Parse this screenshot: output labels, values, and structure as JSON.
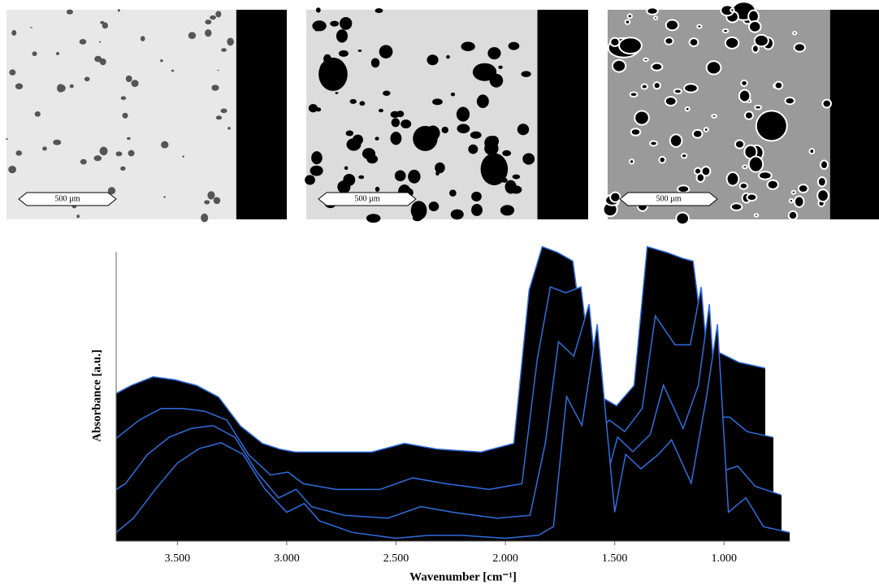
{
  "images": [
    {
      "scale_bar": "500 µm"
    },
    {
      "scale_bar": "500 µm"
    },
    {
      "scale_bar": "500 µm"
    }
  ],
  "chart_data": {
    "type": "waterfall",
    "xlabel": "Wavenumber [cm⁻¹]",
    "ylabel": "Absorbance [a.u.]",
    "xlim": [
      3780,
      700
    ],
    "ylim": [
      0,
      1
    ],
    "xticks": [
      {
        "value": 3500,
        "label": "3.500"
      },
      {
        "value": 3000,
        "label": "3.000"
      },
      {
        "value": 2500,
        "label": "2.500"
      },
      {
        "value": 2000,
        "label": "2.000"
      },
      {
        "value": 1500,
        "label": "1.500"
      },
      {
        "value": 1000,
        "label": "1.000"
      }
    ],
    "x": [
      3780,
      3700,
      3600,
      3500,
      3400,
      3300,
      3200,
      3100,
      3000,
      2920,
      2850,
      2700,
      2500,
      2350,
      2200,
      2000,
      1850,
      1780,
      1720,
      1650,
      1580,
      1500,
      1450,
      1380,
      1300,
      1240,
      1150,
      1080,
      1030,
      980,
      900,
      820,
      700
    ],
    "color": "#2f6fe0",
    "series": [
      {
        "values": [
          0.35,
          0.38,
          0.42,
          0.45,
          0.44,
          0.42,
          0.38,
          0.28,
          0.22,
          0.2,
          0.19,
          0.19,
          0.19,
          0.22,
          0.2,
          0.19,
          0.22,
          0.75,
          0.9,
          0.88,
          0.85,
          0.4,
          0.38,
          0.35,
          0.42,
          0.9,
          0.88,
          0.86,
          0.85,
          0.55,
          0.53,
          0.5,
          0.48
        ]
      },
      {
        "values": [
          0.25,
          0.28,
          0.34,
          0.38,
          0.38,
          0.37,
          0.34,
          0.22,
          0.15,
          0.16,
          0.12,
          0.1,
          0.1,
          0.14,
          0.12,
          0.1,
          0.12,
          0.55,
          0.8,
          0.78,
          0.8,
          0.3,
          0.34,
          0.3,
          0.38,
          0.7,
          0.6,
          0.6,
          0.8,
          0.35,
          0.35,
          0.3,
          0.28
        ]
      },
      {
        "values": [
          0.12,
          0.16,
          0.26,
          0.32,
          0.35,
          0.36,
          0.32,
          0.2,
          0.11,
          0.14,
          0.08,
          0.05,
          0.04,
          0.08,
          0.06,
          0.04,
          0.05,
          0.3,
          0.65,
          0.6,
          0.78,
          0.18,
          0.32,
          0.27,
          0.33,
          0.5,
          0.35,
          0.5,
          0.78,
          0.2,
          0.22,
          0.15,
          0.12
        ]
      },
      {
        "values": [
          0.03,
          0.08,
          0.18,
          0.27,
          0.32,
          0.34,
          0.3,
          0.18,
          0.1,
          0.13,
          0.07,
          0.03,
          0.01,
          0.02,
          0.02,
          0.01,
          0.02,
          0.05,
          0.5,
          0.4,
          0.75,
          0.1,
          0.3,
          0.25,
          0.3,
          0.35,
          0.2,
          0.5,
          0.75,
          0.1,
          0.15,
          0.05,
          0.03
        ]
      }
    ]
  }
}
